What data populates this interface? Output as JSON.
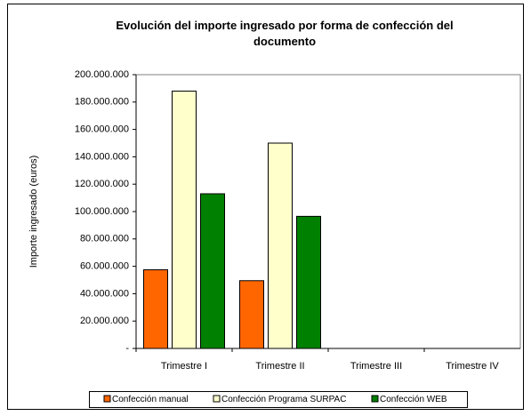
{
  "chart_data": {
    "type": "bar",
    "title": "Evolución del importe ingresado por forma de confección del documento",
    "y_label": "Importe ingresado (euros)",
    "categories": [
      "Trimestre I",
      "Trimestre II",
      "Trimestre III",
      "Trimestre IV"
    ],
    "series": [
      {
        "name": "Confección manual",
        "color": "#ff6600",
        "values": [
          57500000,
          49500000,
          null,
          null
        ]
      },
      {
        "name": "Confección Programa SURPAC",
        "color": "#ffffcc",
        "values": [
          188000000,
          150000000,
          null,
          null
        ]
      },
      {
        "name": "Confección WEB",
        "color": "#008000",
        "values": [
          113000000,
          96500000,
          null,
          null
        ]
      }
    ],
    "ylim": [
      0,
      200000000
    ],
    "yticks": [
      {
        "value": 0,
        "label": "-"
      },
      {
        "value": 20000000,
        "label": "20.000.000"
      },
      {
        "value": 40000000,
        "label": "40.000.000"
      },
      {
        "value": 60000000,
        "label": "60.000.000"
      },
      {
        "value": 80000000,
        "label": "80.000.000"
      },
      {
        "value": 100000000,
        "label": "100.000.000"
      },
      {
        "value": 120000000,
        "label": "120.000.000"
      },
      {
        "value": 140000000,
        "label": "140.000.000"
      },
      {
        "value": 160000000,
        "label": "160.000.000"
      },
      {
        "value": 180000000,
        "label": "180.000.000"
      },
      {
        "value": 200000000,
        "label": "200.000.000"
      }
    ],
    "grid": false,
    "legend": "bottom"
  }
}
